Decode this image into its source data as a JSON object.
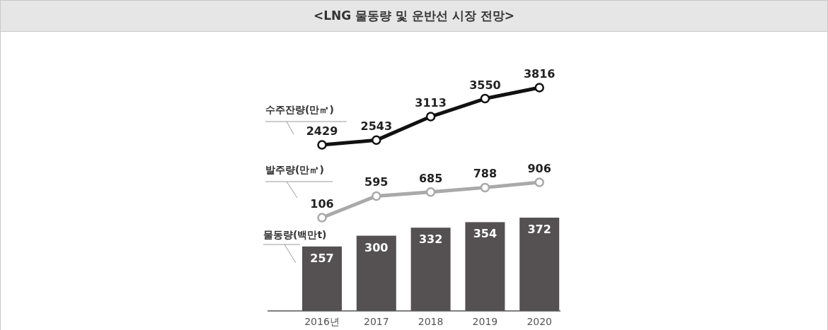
{
  "chart_data": [
    {
      "type": "line",
      "title": "<LNG 물동량 및 운반선 시장 전망>",
      "ylabel": "수주잔량(만㎥)",
      "values": [
        2429,
        2543,
        3113,
        3550,
        3816
      ],
      "color": "#111111",
      "marker": "circle",
      "data_labels": true,
      "tick_labels": false
    },
    {
      "type": "line",
      "ylabel": "발주량(만㎥)",
      "values": [
        106,
        595,
        685,
        788,
        906
      ],
      "color": "#a9a9a9",
      "marker": "circle",
      "data_labels": true,
      "tick_labels": false
    },
    {
      "type": "bar",
      "ylabel": "물동량(백만t)",
      "categories": [
        "2016년",
        "2017",
        "2018",
        "2019",
        "2020"
      ],
      "values": [
        257,
        300,
        332,
        354,
        372
      ],
      "color": "#555152",
      "data_labels": true,
      "tick_labels": "x"
    }
  ]
}
